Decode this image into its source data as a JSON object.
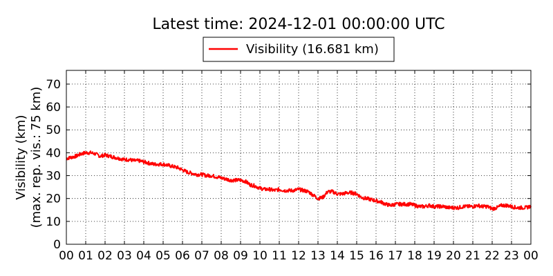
{
  "chart_data": {
    "type": "line",
    "title": "Latest time: 2024-12-01 00:00:00 UTC",
    "xlabel": "",
    "ylabel_line1": "Visibility (km)",
    "ylabel_line2": "(max. rep. vis.: 75 km)",
    "xlim": [
      0,
      24
    ],
    "ylim": [
      0,
      76
    ],
    "x_ticks": [
      0,
      1,
      2,
      3,
      4,
      5,
      6,
      7,
      8,
      9,
      10,
      11,
      12,
      13,
      14,
      15,
      16,
      17,
      18,
      19,
      20,
      21,
      22,
      23,
      24
    ],
    "x_tick_labels": [
      "00",
      "01",
      "02",
      "03",
      "04",
      "05",
      "06",
      "07",
      "08",
      "09",
      "10",
      "11",
      "12",
      "13",
      "14",
      "15",
      "16",
      "17",
      "18",
      "19",
      "20",
      "21",
      "22",
      "23",
      "00"
    ],
    "y_ticks": [
      0,
      10,
      20,
      30,
      40,
      50,
      60,
      70
    ],
    "grid": true,
    "legend_position": "top-center",
    "series": [
      {
        "name": "Visibility (16.681 km)",
        "color": "#ff0000",
        "x": [
          0,
          0.25,
          0.5,
          0.75,
          1,
          1.25,
          1.5,
          1.75,
          2,
          2.25,
          2.5,
          2.75,
          3,
          3.25,
          3.5,
          3.75,
          4,
          4.25,
          4.5,
          4.75,
          5,
          5.25,
          5.5,
          5.75,
          6,
          6.25,
          6.5,
          6.75,
          7,
          7.25,
          7.5,
          7.75,
          8,
          8.25,
          8.5,
          8.75,
          9,
          9.25,
          9.5,
          9.75,
          10,
          10.25,
          10.5,
          10.75,
          11,
          11.25,
          11.5,
          11.75,
          12,
          12.25,
          12.5,
          12.75,
          13,
          13.25,
          13.5,
          13.75,
          14,
          14.25,
          14.5,
          14.75,
          15,
          15.25,
          15.5,
          15.75,
          16,
          16.25,
          16.5,
          16.75,
          17,
          17.25,
          17.5,
          17.75,
          18,
          18.25,
          18.5,
          18.75,
          19,
          19.25,
          19.5,
          19.75,
          20,
          20.25,
          20.5,
          20.75,
          21,
          21.25,
          21.5,
          21.75,
          22,
          22.25,
          22.5,
          22.75,
          23,
          23.25,
          23.5,
          23.75,
          24
        ],
        "y": [
          37.5,
          38,
          38.5,
          39.5,
          40,
          40,
          39.5,
          38.5,
          39,
          38.5,
          38,
          37.5,
          37,
          37,
          36.5,
          36.5,
          36,
          35.5,
          35,
          35,
          35,
          34.5,
          34,
          33.5,
          32.5,
          31.5,
          31,
          30.5,
          30.5,
          30,
          30,
          29.5,
          29,
          28.5,
          28,
          28,
          28,
          27.5,
          26,
          25.5,
          24.5,
          24,
          24,
          23.5,
          24,
          23.5,
          23.5,
          23.5,
          24,
          23.5,
          23,
          21.5,
          20,
          20.5,
          23,
          23,
          22,
          22,
          22.5,
          22.5,
          22,
          20.5,
          20,
          19.5,
          19,
          18.5,
          17.5,
          17,
          17.5,
          17.5,
          17.5,
          17.5,
          17,
          16.5,
          16.5,
          17,
          16.5,
          16.5,
          16.5,
          16,
          16,
          16,
          16.5,
          16.5,
          16.5,
          17,
          16.5,
          16.5,
          15.5,
          16,
          17,
          17,
          16.5,
          16,
          16,
          16,
          16.681
        ]
      }
    ]
  }
}
